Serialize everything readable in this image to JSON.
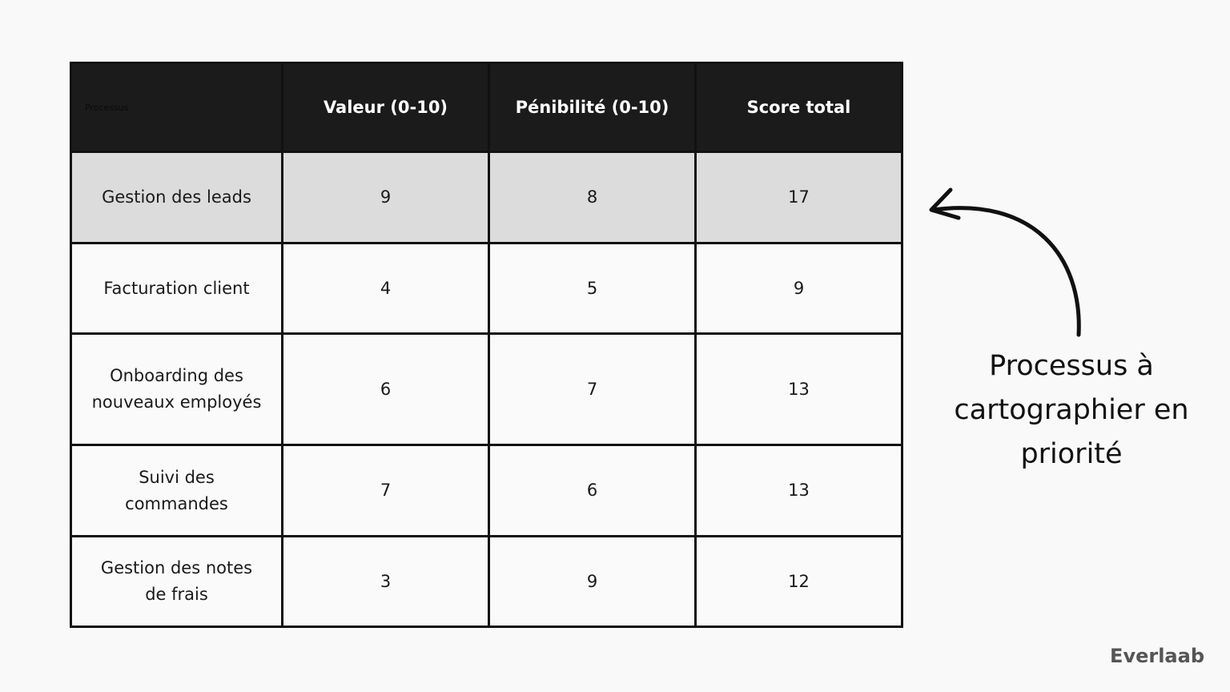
{
  "table": {
    "headers": [
      "Processus",
      "Valeur (0-10)",
      "Pénibilité (0-10)",
      "Score total"
    ],
    "rows": [
      {
        "process": "Gestion des leads",
        "valeur": "9",
        "penibilite": "8",
        "score": "17",
        "highlighted": true
      },
      {
        "process": "Facturation client",
        "valeur": "4",
        "penibilite": "5",
        "score": "9"
      },
      {
        "process": "Onboarding des nouveaux employés",
        "valeur": "6",
        "penibilite": "7",
        "score": "13"
      },
      {
        "process": "Suivi des commandes",
        "valeur": "7",
        "penibilite": "6",
        "score": "13"
      },
      {
        "process": "Gestion des notes de frais",
        "valeur": "3",
        "penibilite": "9",
        "score": "12"
      }
    ]
  },
  "annotation": "Processus à cartographier en priorité",
  "logo": "Everlaab",
  "colors": {
    "header_bg": "#1b1b1b",
    "highlight_row": "#dcdcdc",
    "background": "#f9f9f9"
  }
}
